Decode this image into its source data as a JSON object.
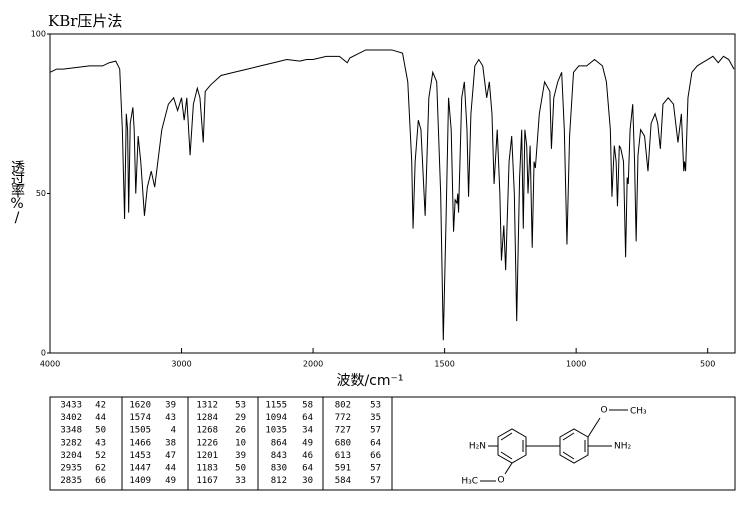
{
  "chart_data": {
    "type": "line",
    "title": "KBr压片法",
    "ylabel": "透过率%/",
    "xlabel": "波数/cm⁻¹",
    "xlim": [
      4000,
      400
    ],
    "xticks": [
      4000,
      3000,
      2000,
      1500,
      1000,
      500
    ],
    "x_scale_change": {
      "at": 2000,
      "factor": 2
    },
    "ylim": [
      0,
      100
    ],
    "yticks": [
      0,
      50,
      100
    ],
    "color": "#000000",
    "x": [
      4000,
      3950,
      3900,
      3800,
      3700,
      3600,
      3550,
      3500,
      3470,
      3450,
      3433,
      3420,
      3410,
      3402,
      3390,
      3370,
      3360,
      3348,
      3330,
      3310,
      3282,
      3260,
      3230,
      3204,
      3180,
      3150,
      3100,
      3060,
      3030,
      3000,
      2980,
      2960,
      2935,
      2910,
      2880,
      2860,
      2835,
      2820,
      2780,
      2700,
      2600,
      2500,
      2400,
      2300,
      2200,
      2100,
      2050,
      2000,
      1950,
      1900,
      1870,
      1860,
      1800,
      1750,
      1700,
      1660,
      1640,
      1625,
      1620,
      1612,
      1600,
      1590,
      1574,
      1560,
      1545,
      1530,
      1515,
      1505,
      1495,
      1485,
      1475,
      1466,
      1460,
      1453,
      1450,
      1447,
      1435,
      1425,
      1415,
      1409,
      1400,
      1385,
      1370,
      1355,
      1340,
      1330,
      1320,
      1312,
      1300,
      1290,
      1284,
      1275,
      1268,
      1255,
      1245,
      1235,
      1226,
      1215,
      1207,
      1201,
      1195,
      1188,
      1183,
      1175,
      1167,
      1160,
      1155,
      1140,
      1120,
      1100,
      1094,
      1085,
      1070,
      1055,
      1045,
      1035,
      1025,
      1010,
      990,
      960,
      930,
      900,
      885,
      870,
      864,
      855,
      848,
      843,
      836,
      830,
      820,
      812,
      806,
      802,
      795,
      785,
      778,
      772,
      765,
      755,
      740,
      727,
      715,
      700,
      690,
      680,
      670,
      650,
      630,
      613,
      600,
      591,
      588,
      584,
      575,
      560,
      540,
      520,
      500,
      480,
      460,
      440,
      420,
      400
    ],
    "values": [
      88,
      89,
      89,
      89.5,
      90,
      90,
      91,
      91.5,
      89,
      70,
      42,
      75,
      70,
      44,
      72,
      77,
      70,
      50,
      68,
      60,
      43,
      52,
      57,
      52,
      60,
      70,
      78,
      80,
      76,
      80,
      73,
      80,
      62,
      78,
      83,
      80,
      66,
      82,
      84,
      87,
      88,
      89,
      90,
      91,
      92,
      91.5,
      92,
      92,
      93,
      93,
      91,
      92.5,
      95,
      95,
      95,
      94,
      85,
      60,
      39,
      60,
      73,
      70,
      43,
      80,
      88,
      85,
      50,
      4,
      40,
      80,
      70,
      38,
      48,
      47,
      50,
      44,
      80,
      85,
      70,
      49,
      75,
      90,
      92,
      90,
      80,
      85,
      75,
      53,
      70,
      50,
      29,
      40,
      26,
      60,
      68,
      50,
      10,
      55,
      70,
      39,
      70,
      65,
      50,
      65,
      33,
      60,
      58,
      75,
      85,
      82,
      64,
      80,
      85,
      88,
      70,
      34,
      68,
      88,
      90,
      90,
      92,
      90,
      85,
      70,
      49,
      65,
      60,
      46,
      65,
      64,
      60,
      30,
      55,
      53,
      70,
      78,
      60,
      35,
      62,
      70,
      68,
      57,
      72,
      75,
      72,
      64,
      78,
      80,
      78,
      66,
      75,
      57,
      60,
      57,
      80,
      88,
      90,
      91,
      92,
      93,
      91,
      93,
      92,
      89
    ]
  },
  "peak_table": {
    "peaks": [
      [
        3433,
        42
      ],
      [
        3402,
        44
      ],
      [
        3348,
        50
      ],
      [
        3282,
        43
      ],
      [
        3204,
        52
      ],
      [
        2935,
        62
      ],
      [
        2835,
        66
      ],
      [
        1620,
        39
      ],
      [
        1574,
        43
      ],
      [
        1505,
        4
      ],
      [
        1466,
        38
      ],
      [
        1453,
        47
      ],
      [
        1447,
        44
      ],
      [
        1409,
        49
      ],
      [
        1312,
        53
      ],
      [
        1284,
        29
      ],
      [
        1268,
        26
      ],
      [
        1226,
        10
      ],
      [
        1201,
        39
      ],
      [
        1183,
        50
      ],
      [
        1167,
        33
      ],
      [
        1155,
        58
      ],
      [
        1094,
        64
      ],
      [
        1035,
        34
      ],
      [
        864,
        49
      ],
      [
        843,
        46
      ],
      [
        830,
        64
      ],
      [
        812,
        30
      ],
      [
        802,
        53
      ],
      [
        772,
        35
      ],
      [
        727,
        57
      ],
      [
        680,
        64
      ],
      [
        613,
        66
      ],
      [
        591,
        57
      ],
      [
        584,
        57
      ]
    ]
  },
  "structure": {
    "labels": [
      "H₂N",
      "NH₂",
      "O",
      "CH₃",
      "H₃C",
      "O"
    ]
  }
}
